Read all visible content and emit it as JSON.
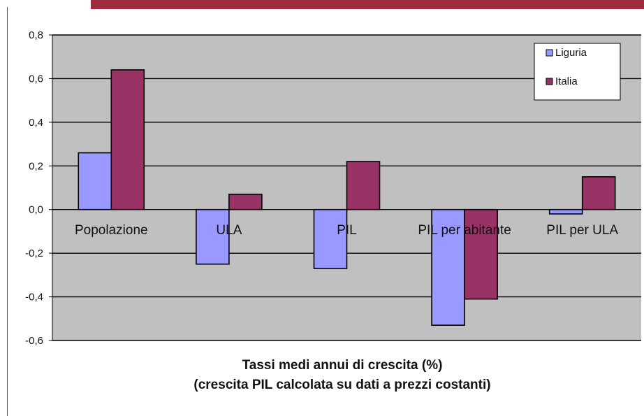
{
  "chart_data": {
    "type": "bar",
    "categories": [
      "Popolazione",
      "ULA",
      "PIL",
      "PIL per abitante",
      "PIL per ULA"
    ],
    "series": [
      {
        "name": "Liguria",
        "values": [
          0.26,
          -0.25,
          -0.27,
          -0.53,
          -0.02
        ],
        "color": "#9999ff"
      },
      {
        "name": "Italia",
        "values": [
          0.64,
          0.07,
          0.22,
          -0.41,
          0.15
        ],
        "color": "#993366"
      }
    ],
    "ylim": [
      -0.6,
      0.8
    ],
    "yticks": [
      "0,8",
      "0,6",
      "0,4",
      "0,2",
      "0,0",
      "-0,2",
      "-0,4",
      "-0,6"
    ],
    "ytick_values": [
      0.8,
      0.6,
      0.4,
      0.2,
      0.0,
      -0.2,
      -0.4,
      -0.6
    ],
    "title_lines": [
      "Tassi medi annui di crescita (%)",
      "(crescita PIL calcolata su dati a prezzi costanti)"
    ],
    "grid": true,
    "legend_position": "top-right",
    "plot_background": "#c0c0c0"
  }
}
